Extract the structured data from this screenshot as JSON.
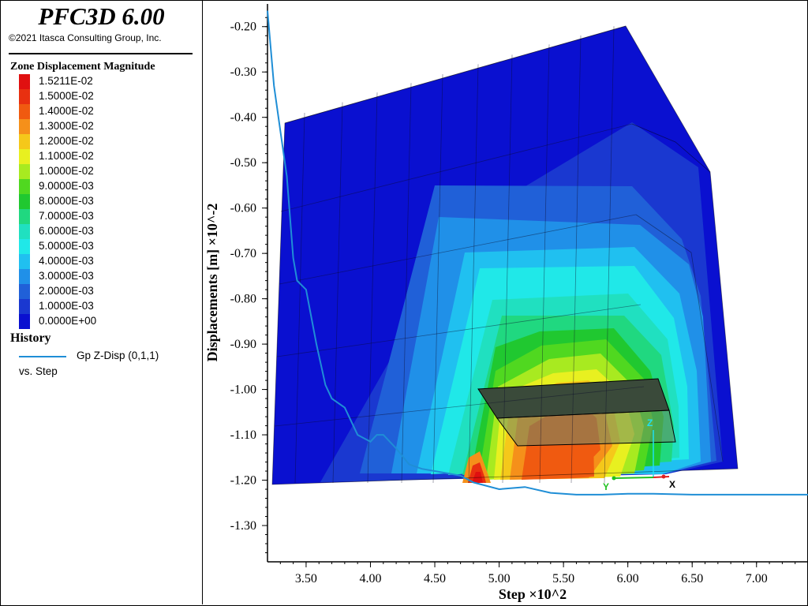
{
  "app": {
    "title": "PFC3D 6.00",
    "copyright": "©2021 Itasca Consulting Group, Inc."
  },
  "legend": {
    "heading": "Zone Displacement Magnitude",
    "items": [
      {
        "label": "1.5211E-02",
        "color": "#e01010"
      },
      {
        "label": "1.5000E-02",
        "color": "#e83010"
      },
      {
        "label": "1.4000E-02",
        "color": "#f05a10"
      },
      {
        "label": "1.3000E-02",
        "color": "#f5901a"
      },
      {
        "label": "1.2000E-02",
        "color": "#f5c81a"
      },
      {
        "label": "1.1000E-02",
        "color": "#e8f020"
      },
      {
        "label": "1.0000E-02",
        "color": "#a8ea20"
      },
      {
        "label": "9.0000E-03",
        "color": "#50d820"
      },
      {
        "label": "8.0000E-03",
        "color": "#20c830"
      },
      {
        "label": "7.0000E-03",
        "color": "#20d880"
      },
      {
        "label": "6.0000E-03",
        "color": "#20e0c0"
      },
      {
        "label": "5.0000E-03",
        "color": "#20e8e8"
      },
      {
        "label": "4.0000E-03",
        "color": "#20c0f0"
      },
      {
        "label": "3.0000E-03",
        "color": "#2090e8"
      },
      {
        "label": "2.0000E-03",
        "color": "#2060d8"
      },
      {
        "label": "1.0000E-03",
        "color": "#1a38d0"
      },
      {
        "label": "0.0000E+00",
        "color": "#0a10d0"
      }
    ]
  },
  "history": {
    "heading": "History",
    "series_label": "Gp Z-Disp (0,1,1)",
    "vs_label": "vs. Step",
    "line_color": "#1f8ed6"
  },
  "chart_data": {
    "type": "line",
    "xlabel": "Step ×10^2",
    "ylabel": "Displacements [m] ×10^-2",
    "xlim": [
      3.2,
      7.4
    ],
    "ylim": [
      -1.38,
      -0.15
    ],
    "x_ticks": [
      "3.50",
      "4.00",
      "4.50",
      "5.00",
      "5.50",
      "6.00",
      "6.50",
      "7.00"
    ],
    "y_ticks": [
      "-0.20",
      "-0.30",
      "-0.40",
      "-0.50",
      "-0.60",
      "-0.70",
      "-0.80",
      "-0.90",
      "-1.00",
      "-1.10",
      "-1.20",
      "-1.30"
    ],
    "grid": false,
    "series": [
      {
        "name": "Gp Z-Disp (0,1,1)",
        "x": [
          3.2,
          3.25,
          3.3,
          3.35,
          3.4,
          3.43,
          3.5,
          3.58,
          3.65,
          3.7,
          3.8,
          3.9,
          4.0,
          4.05,
          4.1,
          4.2,
          4.3,
          4.4,
          4.5,
          4.6,
          4.7,
          4.8,
          5.0,
          5.2,
          5.4,
          5.6,
          5.8,
          6.0,
          6.2,
          6.5,
          7.0,
          7.4
        ],
        "y": [
          -0.165,
          -0.33,
          -0.43,
          -0.53,
          -0.71,
          -0.76,
          -0.78,
          -0.9,
          -0.99,
          -1.02,
          -1.04,
          -1.1,
          -1.115,
          -1.1,
          -1.1,
          -1.13,
          -1.165,
          -1.175,
          -1.18,
          -1.185,
          -1.19,
          -1.205,
          -1.22,
          -1.215,
          -1.228,
          -1.232,
          -1.232,
          -1.23,
          -1.23,
          -1.232,
          -1.232,
          -1.232
        ]
      }
    ]
  }
}
